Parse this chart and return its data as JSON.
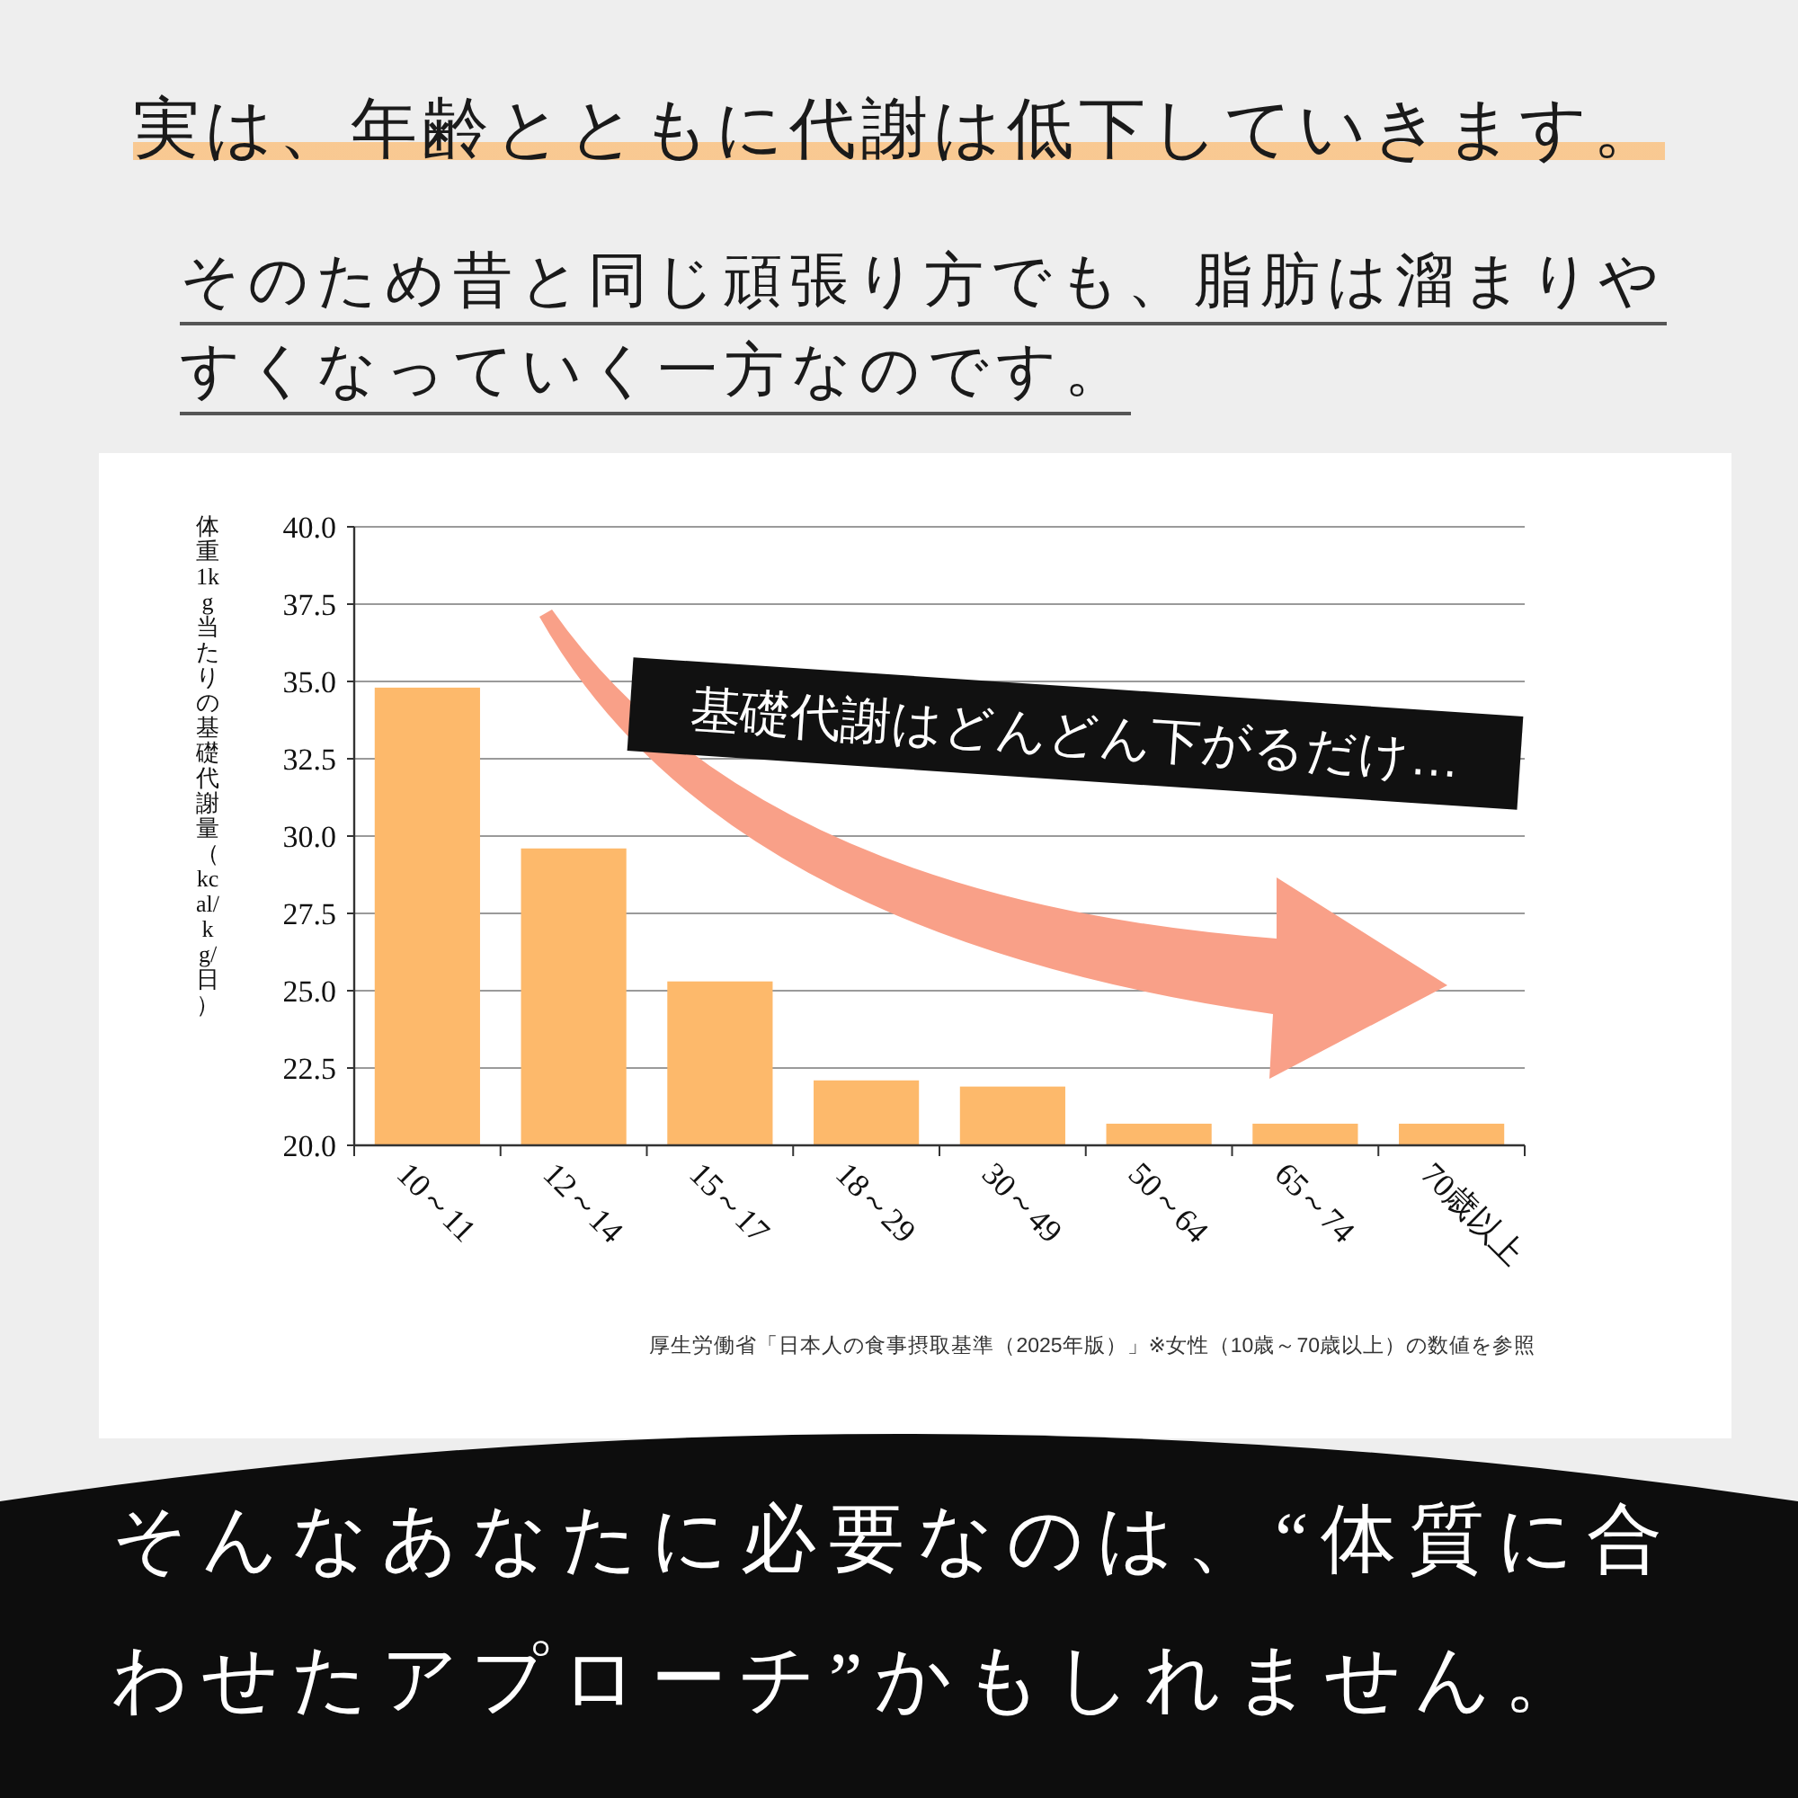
{
  "chart_data": {
    "type": "bar",
    "title": "実は、年齢とともに代謝は低下していきます。",
    "subtitle": "そのため昔と同じ頑張り方でも、脂肪は溜まりやすくなっていく一方なのです。",
    "ylabel": "体重 1kg 当たりの基礎代謝量（kcal/kg/日）",
    "categories": [
      "10～11",
      "12～14",
      "15～17",
      "18～29",
      "30～49",
      "50～64",
      "65～74",
      "70歳以上"
    ],
    "values": [
      34.8,
      29.6,
      25.3,
      22.1,
      21.9,
      20.7,
      20.7,
      20.7
    ],
    "color": "#fdb96b",
    "ylim": [
      20,
      40
    ],
    "yticks": [
      {
        "value": 20,
        "label": "20.0"
      },
      22.5,
      {
        "value": 25,
        "label": "25.0"
      },
      27.5,
      {
        "value": 30,
        "label": "30.0"
      },
      32.5,
      {
        "value": 35,
        "label": "35.0"
      },
      37.5,
      {
        "value": 40,
        "label": "40.0"
      }
    ],
    "grid": "y",
    "annotations": [
      "基礎代謝はどんどん下がるだけ…",
      "厚生労働省「日本人の食事摂取基準（2025年版）」※女性（10歳～70歳以上）の数値を参照",
      "そんなあなたに必要なのは、“体質に合わせたアプローチ”かもしれません。"
    ]
  }
}
